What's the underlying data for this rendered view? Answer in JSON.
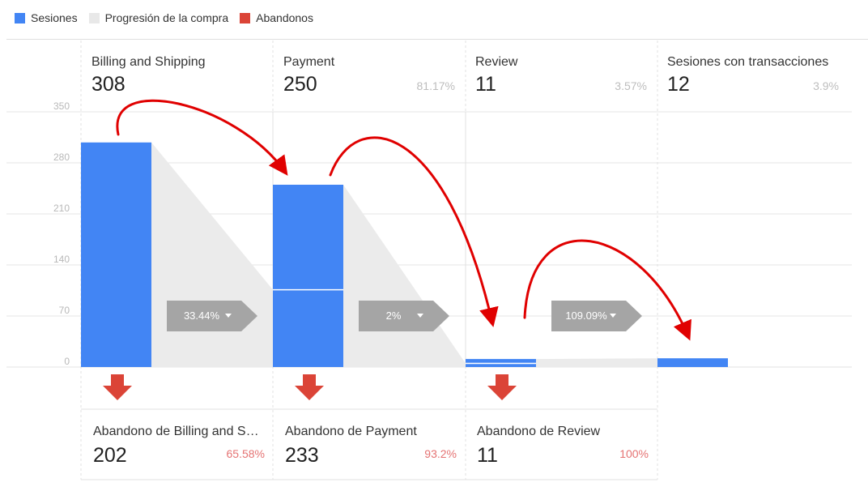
{
  "legend": [
    {
      "label": "Sesiones",
      "color": "#4285f4"
    },
    {
      "label": "Progresión de la compra",
      "color": "#e8e8e8"
    },
    {
      "label": "Abandonos",
      "color": "#db4437"
    }
  ],
  "steps": [
    {
      "name": "Billing and Shipping",
      "value": "308",
      "pct": ""
    },
    {
      "name": "Payment",
      "value": "250",
      "pct": "81.17%"
    },
    {
      "name": "Review",
      "value": "11",
      "pct": "3.57%"
    },
    {
      "name": "Sesiones con transacciones",
      "value": "12",
      "pct": "3.9%"
    }
  ],
  "conversions": [
    {
      "label": "33.44%",
      "icon": "dropdown-caret-icon"
    },
    {
      "label": "2%",
      "icon": "dropdown-caret-icon"
    },
    {
      "label": "109.09%",
      "icon": "dropdown-caret-icon"
    }
  ],
  "drops": [
    {
      "name": "Abandono de Billing and Sh…",
      "value": "202",
      "pct": "65.58%",
      "icon": "down-arrow-icon"
    },
    {
      "name": "Abandono de Payment",
      "value": "233",
      "pct": "93.2%",
      "icon": "down-arrow-icon"
    },
    {
      "name": "Abandono de Review",
      "value": "11",
      "pct": "100%",
      "icon": "down-arrow-icon"
    }
  ],
  "annotation": {
    "color": "#e00000",
    "icon": "curved-arrow-icon"
  },
  "chart_data": {
    "type": "bar",
    "categories": [
      "Billing and Shipping",
      "Payment",
      "Review",
      "Sesiones con transacciones"
    ],
    "yticks": [
      0,
      70,
      140,
      210,
      280,
      350
    ],
    "ylim": [
      0,
      350
    ],
    "grid": true,
    "series": [
      {
        "name": "Sesiones",
        "color": "#4285f4",
        "values": [
          308,
          250,
          11,
          12
        ]
      }
    ],
    "carried_over": [
      null,
      106,
      5,
      null
    ]
  }
}
